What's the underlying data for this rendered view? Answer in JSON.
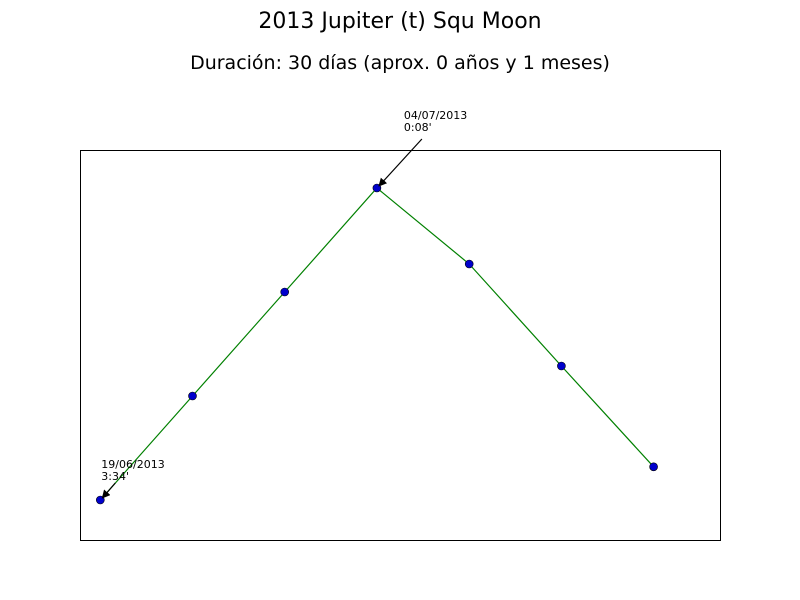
{
  "chart_data": {
    "type": "line",
    "title": "2013 Jupiter (t) Squ Moon",
    "subtitle": "Duración: 30 días (aprox. 0 años y 1 meses)",
    "xlabel": "",
    "ylabel": "",
    "grid": false,
    "x_ticks_visible": false,
    "y_ticks_visible": false,
    "series": [
      {
        "x": [
          0,
          1,
          2,
          3,
          4,
          5,
          6
        ],
        "values": [
          0.5,
          3.1,
          5.7,
          8.3,
          6.4,
          3.85,
          1.33
        ]
      }
    ],
    "xlim": [
      -0.22,
      6.72
    ],
    "ylim": [
      -0.5,
      9.25
    ],
    "line_color": "#008000",
    "marker_color": "#0000cc",
    "annotations": [
      {
        "point_index": 0,
        "line1": "19/06/2013",
        "line2": "3:34'"
      },
      {
        "point_index": 3,
        "line1": "04/07/2013",
        "line2": "0:08'"
      }
    ]
  }
}
